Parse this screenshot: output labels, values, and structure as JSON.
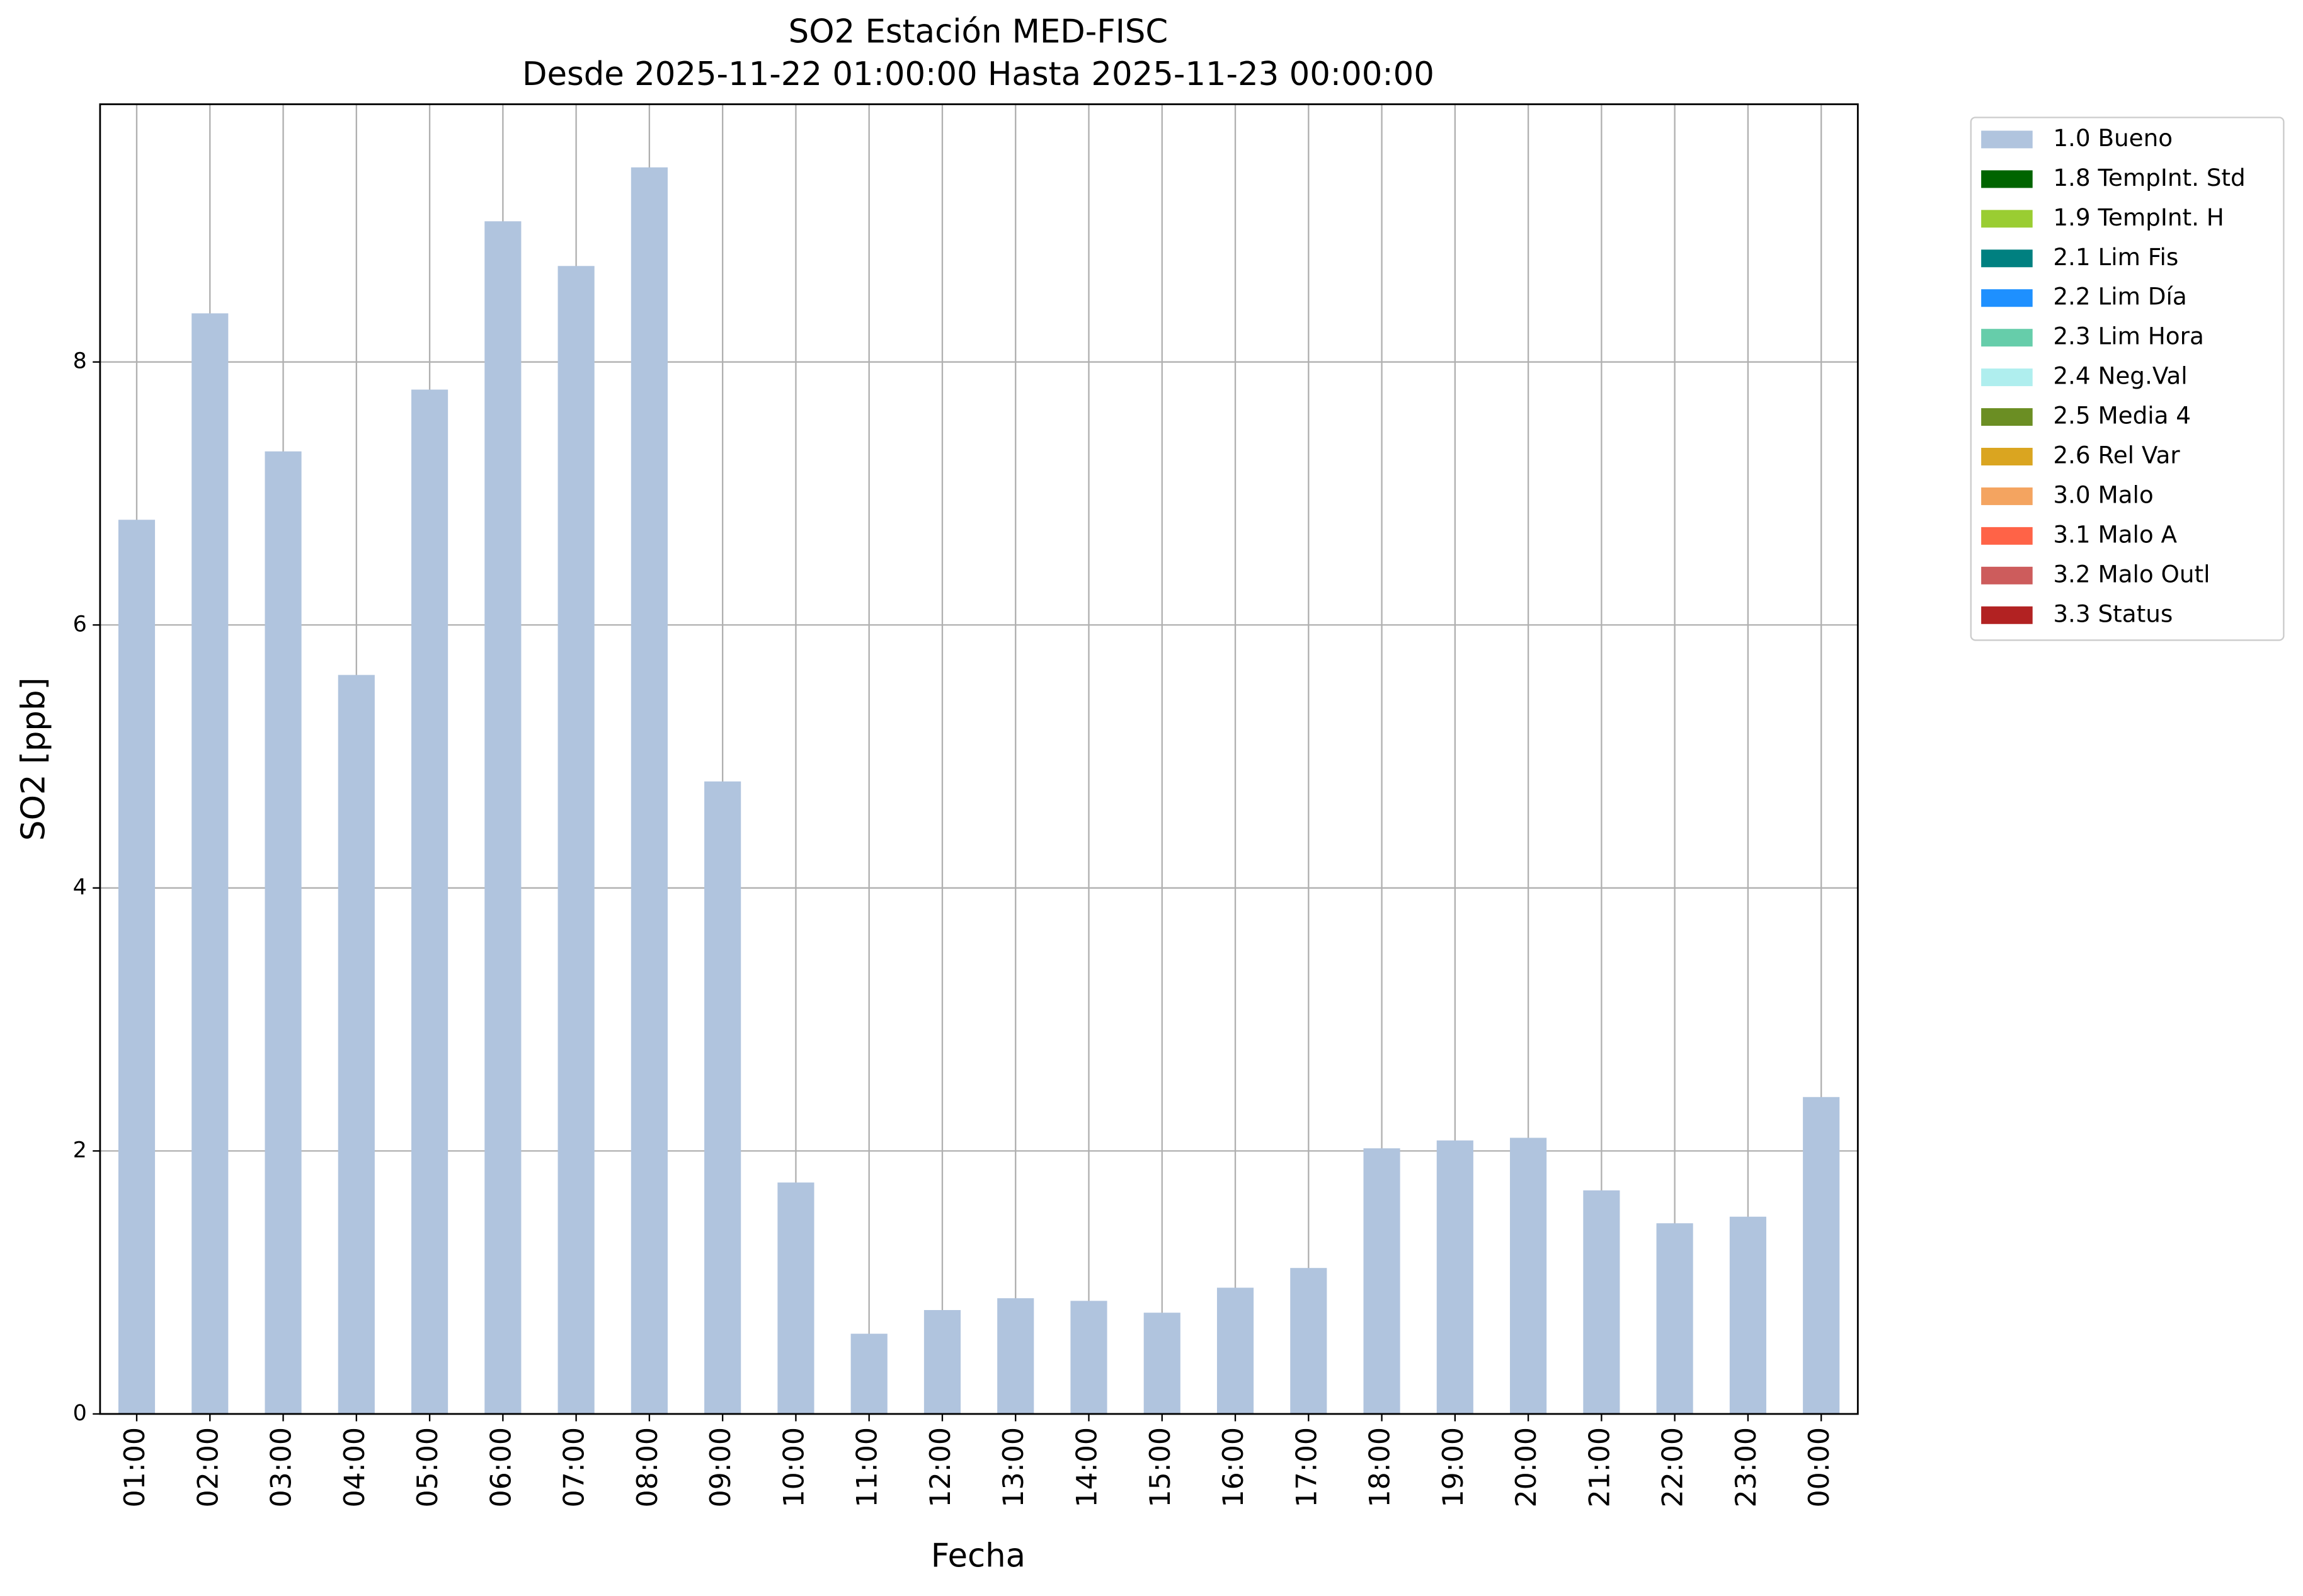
{
  "chart_data": {
    "type": "bar",
    "stacked": true,
    "title": "SO2 Estación MED-FISC",
    "subtitle": "Desde 2025-11-22 01:00:00 Hasta 2025-11-23 00:00:00",
    "x_label": "Fecha",
    "y_label": "SO2 [ppb]",
    "categories": [
      "01:00",
      "02:00",
      "03:00",
      "04:00",
      "05:00",
      "06:00",
      "07:00",
      "08:00",
      "09:00",
      "10:00",
      "11:00",
      "12:00",
      "13:00",
      "14:00",
      "15:00",
      "16:00",
      "17:00",
      "18:00",
      "19:00",
      "20:00",
      "21:00",
      "22:00",
      "23:00",
      "00:00"
    ],
    "ylim": [
      0,
      9.96
    ],
    "yticks": [
      0,
      2,
      4,
      6,
      8
    ],
    "grid": true,
    "legend": "outside-upper-right",
    "series": [
      {
        "name": "1.0 Bueno",
        "color": "#b0c4de",
        "values": [
          6.8,
          8.37,
          7.32,
          5.62,
          7.79,
          9.07,
          8.73,
          9.48,
          4.81,
          1.76,
          0.61,
          0.79,
          0.88,
          0.86,
          0.77,
          0.96,
          1.11,
          2.02,
          2.08,
          2.1,
          1.7,
          1.45,
          1.5,
          2.41
        ]
      },
      {
        "name": "1.8 TempInt. Std",
        "color": "#006400",
        "values": [
          0,
          0,
          0,
          0,
          0,
          0,
          0,
          0,
          0,
          0,
          0,
          0,
          0,
          0,
          0,
          0,
          0,
          0,
          0,
          0,
          0,
          0,
          0,
          0
        ]
      },
      {
        "name": "1.9 TempInt. H",
        "color": "#9acd32",
        "values": [
          0,
          0,
          0,
          0,
          0,
          0,
          0,
          0,
          0,
          0,
          0,
          0,
          0,
          0,
          0,
          0,
          0,
          0,
          0,
          0,
          0,
          0,
          0,
          0
        ]
      },
      {
        "name": "2.1 Lim Fis",
        "color": "#008080",
        "values": [
          0,
          0,
          0,
          0,
          0,
          0,
          0,
          0,
          0,
          0,
          0,
          0,
          0,
          0,
          0,
          0,
          0,
          0,
          0,
          0,
          0,
          0,
          0,
          0
        ]
      },
      {
        "name": "2.2 Lim Día",
        "color": "#1e90ff",
        "values": [
          0,
          0,
          0,
          0,
          0,
          0,
          0,
          0,
          0,
          0,
          0,
          0,
          0,
          0,
          0,
          0,
          0,
          0,
          0,
          0,
          0,
          0,
          0,
          0
        ]
      },
      {
        "name": "2.3 Lim Hora",
        "color": "#66cdaa",
        "values": [
          0,
          0,
          0,
          0,
          0,
          0,
          0,
          0,
          0,
          0,
          0,
          0,
          0,
          0,
          0,
          0,
          0,
          0,
          0,
          0,
          0,
          0,
          0,
          0
        ]
      },
      {
        "name": "2.4 Neg.Val",
        "color": "#afeeee",
        "values": [
          0,
          0,
          0,
          0,
          0,
          0,
          0,
          0,
          0,
          0,
          0,
          0,
          0,
          0,
          0,
          0,
          0,
          0,
          0,
          0,
          0,
          0,
          0,
          0
        ]
      },
      {
        "name": "2.5 Media 4",
        "color": "#6b8e23",
        "values": [
          0,
          0,
          0,
          0,
          0,
          0,
          0,
          0,
          0,
          0,
          0,
          0,
          0,
          0,
          0,
          0,
          0,
          0,
          0,
          0,
          0,
          0,
          0,
          0
        ]
      },
      {
        "name": "2.6 Rel Var",
        "color": "#daa520",
        "values": [
          0,
          0,
          0,
          0,
          0,
          0,
          0,
          0,
          0,
          0,
          0,
          0,
          0,
          0,
          0,
          0,
          0,
          0,
          0,
          0,
          0,
          0,
          0,
          0
        ]
      },
      {
        "name": "3.0 Malo",
        "color": "#f4a460",
        "values": [
          0,
          0,
          0,
          0,
          0,
          0,
          0,
          0,
          0,
          0,
          0,
          0,
          0,
          0,
          0,
          0,
          0,
          0,
          0,
          0,
          0,
          0,
          0,
          0
        ]
      },
      {
        "name": "3.1 Malo A",
        "color": "#ff6347",
        "values": [
          0,
          0,
          0,
          0,
          0,
          0,
          0,
          0,
          0,
          0,
          0,
          0,
          0,
          0,
          0,
          0,
          0,
          0,
          0,
          0,
          0,
          0,
          0,
          0
        ]
      },
      {
        "name": "3.2 Malo Outl",
        "color": "#cd5c5c",
        "values": [
          0,
          0,
          0,
          0,
          0,
          0,
          0,
          0,
          0,
          0,
          0,
          0,
          0,
          0,
          0,
          0,
          0,
          0,
          0,
          0,
          0,
          0,
          0,
          0
        ]
      },
      {
        "name": "3.3 Status",
        "color": "#b22222",
        "values": [
          0,
          0,
          0,
          0,
          0,
          0,
          0,
          0,
          0,
          0,
          0,
          0,
          0,
          0,
          0,
          0,
          0,
          0,
          0,
          0,
          0,
          0,
          0,
          0
        ]
      }
    ]
  }
}
